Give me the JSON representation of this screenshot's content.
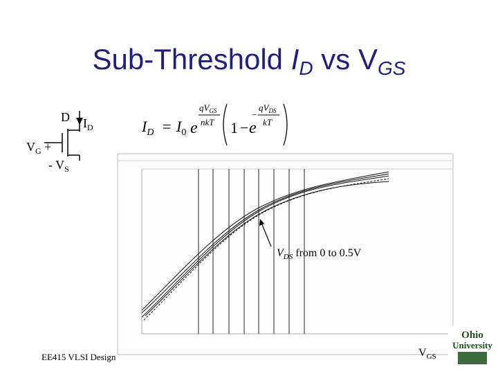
{
  "title": [
    "Sub-Threshold ",
    "I",
    "D",
    " vs V",
    "GS"
  ],
  "circuit": {
    "drain": "D",
    "current": [
      "I",
      "D"
    ],
    "gate": [
      "V",
      "G",
      " +"
    ],
    "source": [
      "- V",
      "S"
    ]
  },
  "equation": {
    "lhs": [
      "I",
      "D"
    ],
    "equals": "=",
    "prefactor": [
      "I",
      "0"
    ],
    "exp1": {
      "base": "e",
      "num": [
        "qV",
        "GS"
      ],
      "den": "nkT"
    },
    "bracket": [
      "1",
      "−"
    ],
    "exp2": {
      "base": "e",
      "sign": "−",
      "num": [
        "qV",
        "DS"
      ],
      "den": "kT"
    }
  },
  "annotation": [
    "V",
    "DS",
    " from 0 to 0.5V"
  ],
  "footer": "EE415 VLSI Design",
  "x_axis_label": [
    "V",
    "GS"
  ],
  "logo": [
    "Ohio",
    "University"
  ]
}
